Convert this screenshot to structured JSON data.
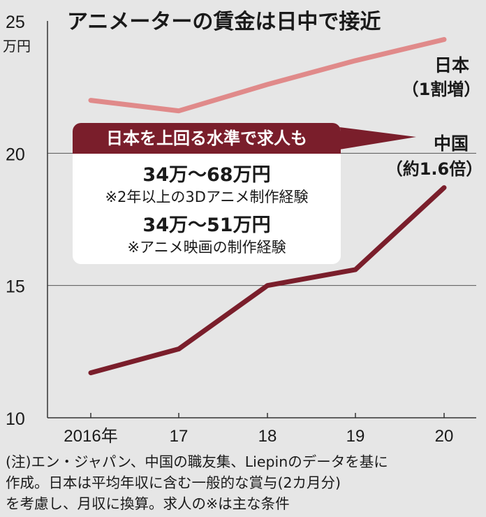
{
  "chart_data": {
    "type": "line",
    "title": "アニメーターの賃金は日中で接近",
    "ylabel": "万円",
    "x": [
      "2016年",
      "17",
      "18",
      "19",
      "20"
    ],
    "ylim": [
      10,
      25
    ],
    "yticks": [
      10,
      15,
      20,
      25
    ],
    "grid": "horizontal",
    "series": [
      {
        "name": "日本",
        "note": "（1割増）",
        "color": "#e08a8a",
        "values": [
          22.0,
          21.6,
          22.6,
          23.5,
          24.3
        ]
      },
      {
        "name": "中国",
        "note": "（約1.6倍）",
        "color": "#7a1e2b",
        "values": [
          11.7,
          12.6,
          15.0,
          15.6,
          18.7
        ]
      }
    ]
  },
  "callout": {
    "header": "日本を上回る水準で求人も",
    "items": [
      {
        "range": "34万～68万円",
        "condition": "※2年以上の3Dアニメ制作経験"
      },
      {
        "range": "34万～51万円",
        "condition": "※アニメ映画の制作経験"
      }
    ]
  },
  "note": {
    "lines": [
      "(注)エン・ジャパン、中国の職友集、Liepinのデータを基に",
      "作成。日本は平均年収に含む一般的な賞与(2カ月分)",
      "を考慮し、月収に換算。求人の※は主な条件"
    ]
  }
}
